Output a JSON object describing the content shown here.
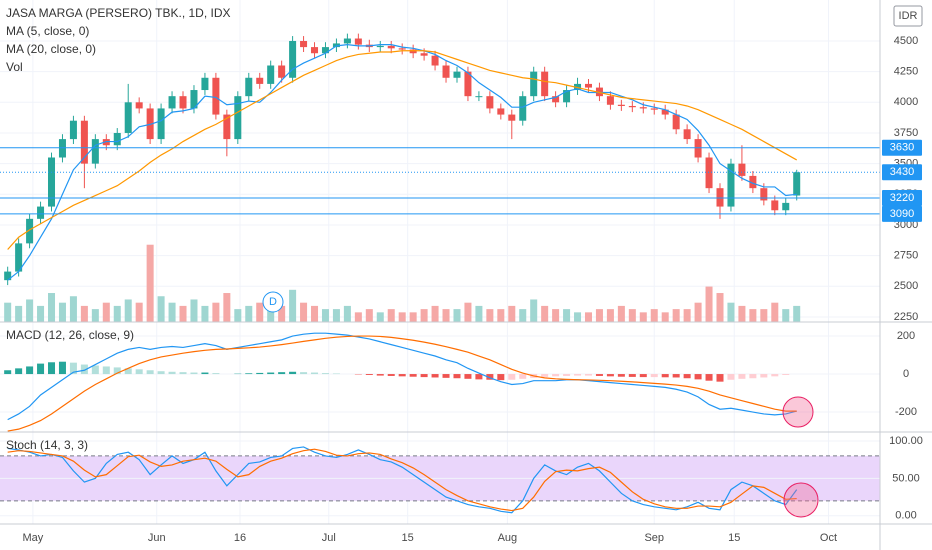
{
  "chart_data": [
    {
      "type": "candlestick",
      "title": "JASA MARGA (PERSERO) TBK., 1D, IDX",
      "currency": "IDR",
      "up_color": "#26a69a",
      "down_color": "#ef5350",
      "opens": [
        2550,
        2620,
        2850,
        3050,
        3150,
        3550,
        3700,
        3850,
        3500,
        3700,
        3650,
        3750,
        4000,
        3950,
        3700,
        3950,
        4050,
        3950,
        4100,
        4200,
        3900,
        3700,
        4050,
        4200,
        4150,
        4300,
        4200,
        4500,
        4450,
        4400,
        4450,
        4480,
        4520,
        4470,
        4450,
        4460,
        4440,
        4430,
        4400,
        4380,
        4300,
        4200,
        4250,
        4050,
        4050,
        3950,
        3900,
        3850,
        4050,
        4250,
        4050,
        4000,
        4100,
        4150,
        4120,
        4050,
        3980,
        3970,
        3960,
        3950,
        3940,
        3900,
        3780,
        3700,
        3550,
        3300,
        3150,
        3500,
        3400,
        3300,
        3200,
        3120,
        3240
      ],
      "highs": [
        2660,
        2890,
        3090,
        3190,
        3590,
        3740,
        3890,
        3890,
        3740,
        3740,
        3790,
        4150,
        4040,
        3990,
        3990,
        4090,
        4090,
        4140,
        4240,
        4240,
        3940,
        4090,
        4240,
        4240,
        4340,
        4340,
        4540,
        4540,
        4490,
        4490,
        4520,
        4560,
        4560,
        4510,
        4500,
        4500,
        4480,
        4470,
        4440,
        4420,
        4340,
        4290,
        4290,
        4090,
        4090,
        3990,
        3940,
        4090,
        4290,
        4290,
        4090,
        4140,
        4200,
        4190,
        4160,
        4090,
        4020,
        4010,
        4000,
        3990,
        3980,
        3940,
        3820,
        3740,
        3590,
        3340,
        3540,
        3650,
        3440,
        3340,
        3240,
        3220,
        3450
      ],
      "lows": [
        2510,
        2580,
        2810,
        3010,
        3110,
        3510,
        3660,
        3300,
        3460,
        3610,
        3610,
        3710,
        3910,
        3660,
        3660,
        3910,
        3910,
        3910,
        4060,
        3860,
        3560,
        3660,
        4010,
        4110,
        4110,
        4160,
        4160,
        4410,
        4360,
        4360,
        4410,
        4440,
        4430,
        4410,
        4410,
        4400,
        4390,
        4360,
        4340,
        4260,
        4160,
        4160,
        4010,
        4010,
        3910,
        3860,
        3700,
        3810,
        4010,
        4010,
        3960,
        3960,
        4060,
        4080,
        4010,
        3940,
        3930,
        3920,
        3910,
        3900,
        3860,
        3740,
        3660,
        3510,
        3260,
        3050,
        3110,
        3360,
        3260,
        3160,
        3080,
        3080,
        3200
      ],
      "closes": [
        2620,
        2850,
        3050,
        3150,
        3550,
        3700,
        3850,
        3500,
        3700,
        3650,
        3750,
        4000,
        3950,
        3700,
        3950,
        4050,
        3950,
        4100,
        4200,
        3900,
        3700,
        4050,
        4200,
        4150,
        4300,
        4200,
        4500,
        4450,
        4400,
        4450,
        4480,
        4520,
        4470,
        4450,
        4460,
        4440,
        4430,
        4400,
        4380,
        4300,
        4200,
        4250,
        4050,
        4050,
        3950,
        3900,
        3850,
        4050,
        4250,
        4050,
        4000,
        4100,
        4150,
        4120,
        4050,
        3980,
        3970,
        3960,
        3950,
        3940,
        3900,
        3780,
        3700,
        3550,
        3300,
        3150,
        3500,
        3400,
        3300,
        3200,
        3120,
        3180,
        3430
      ],
      "series": [
        {
          "name": "MA (5, close, 0)",
          "color": "#2196f3",
          "values": [
            2550,
            2620,
            2750,
            2900,
            3050,
            3250,
            3450,
            3550,
            3650,
            3680,
            3680,
            3720,
            3800,
            3820,
            3850,
            3920,
            3930,
            3950,
            4050,
            4040,
            3980,
            3990,
            4010,
            4000,
            4080,
            4180,
            4270,
            4320,
            4360,
            4400,
            4460,
            4470,
            4460,
            4460,
            4470,
            4470,
            4450,
            4440,
            4420,
            4390,
            4340,
            4300,
            4240,
            4160,
            4100,
            4040,
            3960,
            3960,
            4000,
            4020,
            4040,
            4090,
            4110,
            4080,
            4080,
            4080,
            4050,
            4020,
            3980,
            3960,
            3940,
            3900,
            3860,
            3770,
            3650,
            3500,
            3440,
            3380,
            3340,
            3310,
            3310,
            3240,
            3250
          ]
        },
        {
          "name": "MA (20, close, 0)",
          "color": "#ff9800",
          "values": [
            2800,
            2900,
            2960,
            3010,
            3060,
            3110,
            3160,
            3200,
            3240,
            3280,
            3320,
            3380,
            3440,
            3510,
            3570,
            3620,
            3680,
            3730,
            3780,
            3820,
            3870,
            3920,
            3970,
            4020,
            4070,
            4120,
            4170,
            4220,
            4260,
            4300,
            4340,
            4370,
            4390,
            4400,
            4410,
            4410,
            4420,
            4420,
            4420,
            4410,
            4380,
            4350,
            4320,
            4290,
            4260,
            4240,
            4220,
            4200,
            4190,
            4170,
            4160,
            4140,
            4120,
            4100,
            4080,
            4060,
            4040,
            4030,
            4020,
            4010,
            4000,
            3990,
            3970,
            3940,
            3900,
            3860,
            3820,
            3780,
            3730,
            3680,
            3630,
            3580,
            3530
          ]
        },
        {
          "name": "Vol",
          "axis": "y2",
          "up_color": "#9fd6d1",
          "down_color": "#f5a8a6",
          "values": [
            6,
            5,
            7,
            5,
            9,
            6,
            8,
            5,
            4,
            6,
            5,
            7,
            6,
            24,
            8,
            6,
            5,
            7,
            5,
            6,
            9,
            4,
            5,
            6,
            4,
            5,
            10,
            6,
            5,
            4,
            4,
            5,
            3,
            4,
            3,
            4,
            3,
            3,
            4,
            5,
            4,
            4,
            6,
            5,
            4,
            4,
            5,
            4,
            7,
            5,
            4,
            4,
            3,
            3,
            4,
            4,
            5,
            4,
            3,
            4,
            3,
            4,
            4,
            6,
            11,
            9,
            6,
            5,
            4,
            4,
            6,
            4,
            5
          ]
        }
      ],
      "ylim": [
        2209,
        4834
      ],
      "yticks": [
        2250,
        2500,
        2750,
        3000,
        3250,
        3500,
        3750,
        4000,
        4250,
        4500
      ],
      "y2lim": [
        0,
        100
      ],
      "xlim": [
        -0.7,
        79.6
      ],
      "xticks": [
        {
          "value": 2.3,
          "label": "May"
        },
        {
          "value": 13.6,
          "label": "Jun"
        },
        {
          "value": 21.2,
          "label": "16"
        },
        {
          "value": 29.3,
          "label": "Jul"
        },
        {
          "value": 36.5,
          "label": "15"
        },
        {
          "value": 45.6,
          "label": "Aug"
        },
        {
          "value": 59.0,
          "label": "Sep"
        },
        {
          "value": 66.3,
          "label": "15"
        },
        {
          "value": 74.9,
          "label": "Oct"
        }
      ],
      "levels": [
        3630,
        3220,
        3090
      ],
      "level_color": "#2196f3",
      "last_price": 3430,
      "annotations": [
        {
          "text": "D"
        }
      ],
      "grid": true
    },
    {
      "type": "macd",
      "title": "MACD (12, 26, close, 9)",
      "series": [
        {
          "type": "histogram",
          "colors": [
            "#26a69a",
            "#b2dfdb",
            "#ffcdd2",
            "#ef5350"
          ],
          "values": [
            20,
            30,
            40,
            55,
            62,
            65,
            60,
            50,
            45,
            40,
            35,
            30,
            25,
            20,
            15,
            12,
            10,
            8,
            8,
            5,
            0,
            2,
            4,
            6,
            8,
            10,
            12,
            10,
            8,
            5,
            3,
            0,
            -2,
            -5,
            -8,
            -10,
            -12,
            -14,
            -16,
            -18,
            -20,
            -22,
            -25,
            -28,
            -30,
            -32,
            -30,
            -25,
            -20,
            -15,
            -12,
            -10,
            -8,
            -8,
            -10,
            -12,
            -14,
            -15,
            -16,
            -16,
            -17,
            -18,
            -22,
            -28,
            -35,
            -40,
            -30,
            -25,
            -22,
            -18,
            -12,
            -5,
            0
          ]
        },
        {
          "type": "line",
          "color": "#2196f3",
          "values": [
            -240,
            -210,
            -170,
            -110,
            -70,
            -30,
            10,
            20,
            50,
            80,
            110,
            130,
            140,
            130,
            140,
            145,
            140,
            150,
            160,
            150,
            130,
            140,
            150,
            160,
            170,
            180,
            200,
            210,
            215,
            215,
            210,
            205,
            195,
            185,
            170,
            155,
            140,
            125,
            110,
            95,
            75,
            60,
            30,
            5,
            -20,
            -40,
            -55,
            -50,
            -35,
            -35,
            -35,
            -30,
            -30,
            -35,
            -40,
            -45,
            -50,
            -55,
            -60,
            -65,
            -70,
            -80,
            -95,
            -120,
            -160,
            -185,
            -180,
            -190,
            -200,
            -210,
            -215,
            -210,
            -195
          ]
        },
        {
          "type": "line",
          "color": "#ff6d00",
          "values": [
            -300,
            -290,
            -270,
            -245,
            -210,
            -170,
            -130,
            -90,
            -55,
            -25,
            5,
            30,
            55,
            75,
            90,
            100,
            110,
            118,
            125,
            130,
            132,
            135,
            138,
            142,
            148,
            155,
            163,
            172,
            180,
            188,
            194,
            198,
            200,
            200,
            198,
            193,
            186,
            178,
            168,
            157,
            144,
            130,
            115,
            95,
            75,
            50,
            25,
            5,
            -10,
            -20,
            -25,
            -28,
            -30,
            -31,
            -33,
            -35,
            -38,
            -41,
            -45,
            -49,
            -53,
            -58,
            -65,
            -75,
            -90,
            -110,
            -125,
            -140,
            -155,
            -170,
            -185,
            -195,
            -195
          ]
        }
      ],
      "ylim": [
        -305,
        274
      ],
      "yticks": [
        -200,
        0,
        200
      ],
      "grid": true
    },
    {
      "type": "stochastic",
      "title": "Stoch (14, 3, 3)",
      "series": [
        {
          "color": "#2196f3",
          "values": [
            90,
            88,
            85,
            80,
            82,
            78,
            60,
            45,
            50,
            70,
            82,
            85,
            75,
            55,
            68,
            80,
            70,
            75,
            85,
            60,
            40,
            55,
            70,
            72,
            78,
            80,
            90,
            92,
            85,
            80,
            78,
            82,
            88,
            82,
            75,
            72,
            65,
            55,
            45,
            35,
            25,
            20,
            15,
            12,
            10,
            6,
            4,
            20,
            50,
            68,
            60,
            55,
            65,
            70,
            60,
            45,
            30,
            20,
            15,
            12,
            10,
            8,
            12,
            18,
            10,
            8,
            35,
            45,
            40,
            30,
            20,
            15,
            35
          ]
        },
        {
          "color": "#ff6d00",
          "values": [
            85,
            87,
            86,
            84,
            82,
            80,
            73,
            61,
            52,
            55,
            67,
            79,
            81,
            72,
            66,
            68,
            73,
            75,
            77,
            73,
            62,
            52,
            55,
            66,
            73,
            77,
            83,
            87,
            89,
            86,
            81,
            80,
            83,
            84,
            82,
            76,
            71,
            64,
            55,
            45,
            35,
            27,
            20,
            16,
            12,
            9,
            7,
            10,
            25,
            46,
            59,
            61,
            60,
            63,
            65,
            58,
            45,
            32,
            22,
            16,
            12,
            10,
            10,
            13,
            13,
            12,
            18,
            29,
            40,
            38,
            30,
            22,
            23
          ]
        }
      ],
      "ylim": [
        -11,
        112
      ],
      "yticks": [
        {
          "value": 100,
          "label": "100.00"
        },
        {
          "value": 50,
          "label": "50.00"
        },
        {
          "value": 0,
          "label": "0.00"
        }
      ],
      "bands": [
        20,
        80
      ],
      "band_color": "#ead6fb",
      "grid": true
    }
  ]
}
